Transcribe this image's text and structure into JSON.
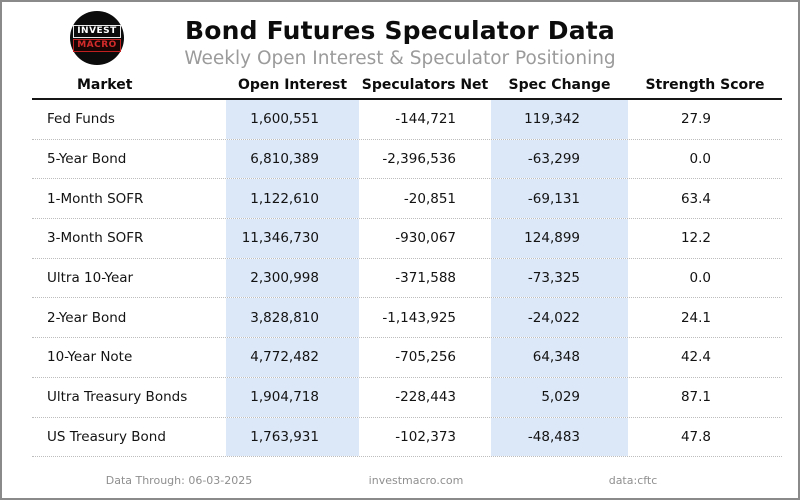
{
  "header": {
    "title": "Bond Futures Speculator Data",
    "subtitle": "Weekly Open Interest & Speculator Positioning",
    "logo": {
      "line1": "INVEST",
      "line2": "MACRO",
      "background": "#0b0b0b",
      "accent": "#d42b2b"
    }
  },
  "table": {
    "columns": [
      "Market",
      "Open Interest",
      "Speculators Net",
      "Spec Change",
      "Strength Score"
    ],
    "highlight_color": "#dce8f8",
    "rows": [
      {
        "market": "Fed Funds",
        "open_interest": "1,600,551",
        "speculators_net": "-144,721",
        "spec_change": "119,342",
        "strength_score": "27.9"
      },
      {
        "market": "5-Year Bond",
        "open_interest": "6,810,389",
        "speculators_net": "-2,396,536",
        "spec_change": "-63,299",
        "strength_score": "0.0"
      },
      {
        "market": "1-Month SOFR",
        "open_interest": "1,122,610",
        "speculators_net": "-20,851",
        "spec_change": "-69,131",
        "strength_score": "63.4"
      },
      {
        "market": "3-Month SOFR",
        "open_interest": "11,346,730",
        "speculators_net": "-930,067",
        "spec_change": "124,899",
        "strength_score": "12.2"
      },
      {
        "market": "Ultra 10-Year",
        "open_interest": "2,300,998",
        "speculators_net": "-371,588",
        "spec_change": "-73,325",
        "strength_score": "0.0"
      },
      {
        "market": "2-Year Bond",
        "open_interest": "3,828,810",
        "speculators_net": "-1,143,925",
        "spec_change": "-24,022",
        "strength_score": "24.1"
      },
      {
        "market": "10-Year Note",
        "open_interest": "4,772,482",
        "speculators_net": "-705,256",
        "spec_change": "64,348",
        "strength_score": "42.4"
      },
      {
        "market": "Ultra Treasury Bonds",
        "open_interest": "1,904,718",
        "speculators_net": "-228,443",
        "spec_change": "5,029",
        "strength_score": "87.1"
      },
      {
        "market": "US Treasury Bond",
        "open_interest": "1,763,931",
        "speculators_net": "-102,373",
        "spec_change": "-48,483",
        "strength_score": "47.8"
      }
    ]
  },
  "footer": {
    "data_through": "Data Through: 06-03-2025",
    "site": "investmacro.com",
    "source": "data:cftc"
  },
  "chart_data": {
    "type": "table",
    "title": "Bond Futures Speculator Data",
    "subtitle": "Weekly Open Interest & Speculator Positioning",
    "columns": [
      "Market",
      "Open Interest",
      "Speculators Net",
      "Spec Change",
      "Strength Score"
    ],
    "rows": [
      [
        "Fed Funds",
        1600551,
        -144721,
        119342,
        27.9
      ],
      [
        "5-Year Bond",
        6810389,
        -2396536,
        -63299,
        0.0
      ],
      [
        "1-Month SOFR",
        1122610,
        -20851,
        -69131,
        63.4
      ],
      [
        "3-Month SOFR",
        11346730,
        -930067,
        124899,
        12.2
      ],
      [
        "Ultra 10-Year",
        2300998,
        -371588,
        -73325,
        0.0
      ],
      [
        "2-Year Bond",
        3828810,
        -1143925,
        -24022,
        24.1
      ],
      [
        "10-Year Note",
        4772482,
        -705256,
        64348,
        42.4
      ],
      [
        "Ultra Treasury Bonds",
        1904718,
        -228443,
        5029,
        87.1
      ],
      [
        "US Treasury Bond",
        1763931,
        -102373,
        -48483,
        47.8
      ]
    ],
    "highlighted_columns": [
      "Open Interest",
      "Spec Change"
    ],
    "footer": [
      "Data Through: 06-03-2025",
      "investmacro.com",
      "data:cftc"
    ]
  }
}
